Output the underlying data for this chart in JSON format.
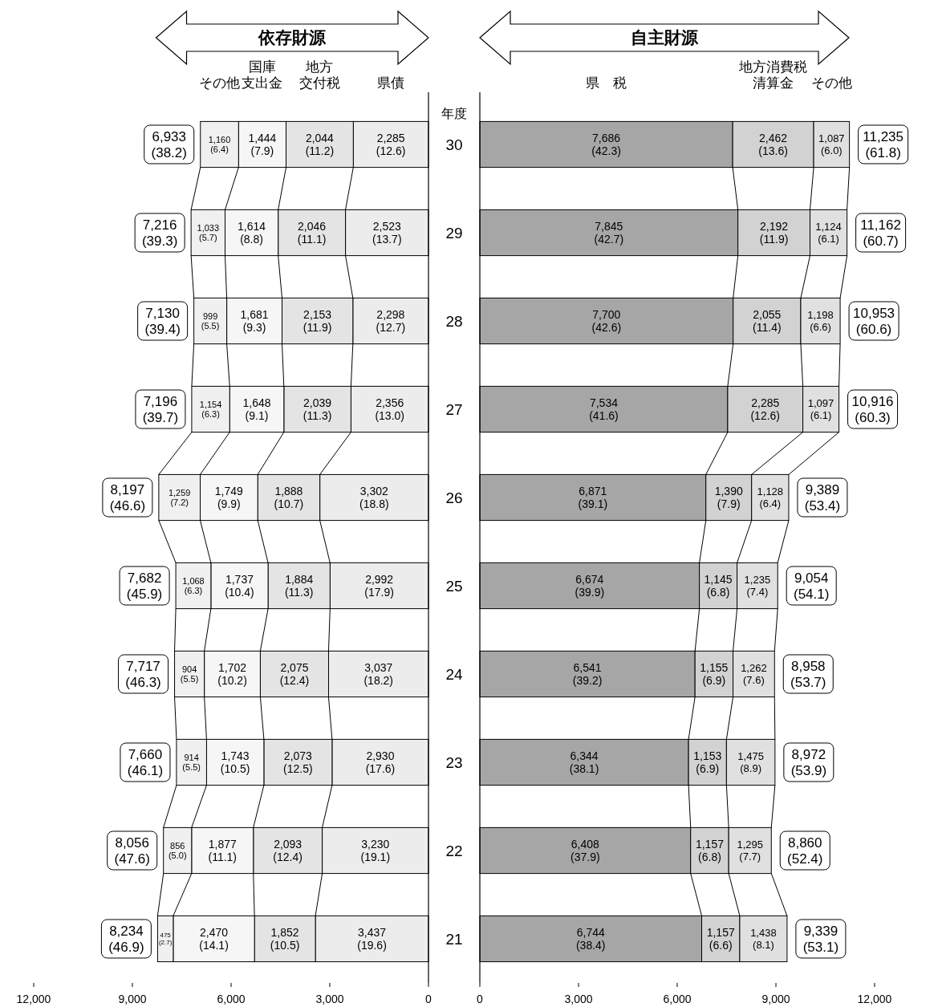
{
  "chart_data": [
    {
      "type": "bar",
      "orientation": "horizontal",
      "stacked": true,
      "title": "依存財源",
      "categories": [
        "30",
        "29",
        "28",
        "27",
        "26",
        "25",
        "24",
        "23",
        "22",
        "21"
      ],
      "tick_labels": "x",
      "legend": false,
      "grid": false,
      "xlim": [
        12000,
        0
      ],
      "xticks": [
        {
          "value": 12000,
          "label": "12,000"
        },
        {
          "value": 9000,
          "label": "9,000"
        },
        {
          "value": 6000,
          "label": "6,000"
        },
        {
          "value": 3000,
          "label": "3,000"
        },
        0
      ],
      "series": [
        {
          "name": "県債",
          "color": "#ececec",
          "values": [
            2285,
            2523,
            2298,
            2356,
            3302,
            2992,
            3037,
            2930,
            3230,
            3437
          ],
          "value_labels": [
            "2,285\n(12.6)",
            "2,523\n(13.7)",
            "2,298\n(12.7)",
            "2,356\n(13.0)",
            "3,302\n(18.8)",
            "2,992\n(17.9)",
            "3,037\n(18.2)",
            "2,930\n(17.6)",
            "3,230\n(19.1)",
            "3,437\n(19.6)"
          ]
        },
        {
          "name": "地方交付税",
          "color": "#e4e4e4",
          "values": [
            2044,
            2046,
            2153,
            2039,
            1888,
            1884,
            2075,
            2073,
            2093,
            1852
          ],
          "value_labels": [
            "2,044\n(11.2)",
            "2,046\n(11.1)",
            "2,153\n(11.9)",
            "2,039\n(11.3)",
            "1,888\n(10.7)",
            "1,884\n(11.3)",
            "2,075\n(12.4)",
            "2,073\n(12.5)",
            "2,093\n(12.4)",
            "1,852\n(10.5)"
          ]
        },
        {
          "name": "国庫支出金",
          "color": "#f6f6f6",
          "values": [
            1444,
            1614,
            1681,
            1648,
            1749,
            1737,
            1702,
            1743,
            1877,
            2470
          ],
          "value_labels": [
            "1,444\n(7.9)",
            "1,614\n(8.8)",
            "1,681\n(9.3)",
            "1,648\n(9.1)",
            "1,749\n(9.9)",
            "1,737\n(10.4)",
            "1,702\n(10.2)",
            "1,743\n(10.5)",
            "1,877\n(11.1)",
            "2,470\n(14.1)"
          ]
        },
        {
          "name": "その他",
          "color": "#f0f0f0",
          "values": [
            1160,
            1033,
            999,
            1154,
            1259,
            1068,
            904,
            914,
            856,
            475
          ],
          "value_labels": [
            "1,160\n(6.4)",
            "1,033\n(5.7)",
            "999\n(5.5)",
            "1,154\n(6.3)",
            "1,259\n(7.2)",
            "1,068\n(6.3)",
            "904\n(5.5)",
            "914\n(5.5)",
            "856\n(5.0)",
            "475\n(2.7)"
          ]
        }
      ],
      "totals": [
        "6,933\n(38.2)",
        "7,216\n(39.3)",
        "7,130\n(39.4)",
        "7,196\n(39.7)",
        "8,197\n(46.6)",
        "7,682\n(45.9)",
        "7,717\n(46.3)",
        "7,660\n(46.1)",
        "8,056\n(47.6)",
        "8,234\n(46.9)"
      ]
    },
    {
      "type": "bar",
      "orientation": "horizontal",
      "stacked": true,
      "title": "自主財源",
      "ylabel": "年度",
      "categories": [
        "30",
        "29",
        "28",
        "27",
        "26",
        "25",
        "24",
        "23",
        "22",
        "21"
      ],
      "legend": false,
      "grid": false,
      "xlim": [
        0,
        12000
      ],
      "xticks": [
        0,
        {
          "value": 3000,
          "label": "3,000"
        },
        {
          "value": 6000,
          "label": "6,000"
        },
        {
          "value": 9000,
          "label": "9,000"
        },
        {
          "value": 12000,
          "label": "12,000"
        }
      ],
      "series": [
        {
          "name": "県　税",
          "color": "#a6a6a6",
          "values": [
            7686,
            7845,
            7700,
            7534,
            6871,
            6674,
            6541,
            6344,
            6408,
            6744
          ],
          "value_labels": [
            "7,686\n(42.3)",
            "7,845\n(42.7)",
            "7,700\n(42.6)",
            "7,534\n(41.6)",
            "6,871\n(39.1)",
            "6,674\n(39.9)",
            "6,541\n(39.2)",
            "6,344\n(38.1)",
            "6,408\n(37.9)",
            "6,744\n(38.4)"
          ]
        },
        {
          "name": "地方消費税清算金",
          "color": "#d2d2d2",
          "values": [
            2462,
            2192,
            2055,
            2285,
            1390,
            1145,
            1155,
            1153,
            1157,
            1157
          ],
          "value_labels": [
            "2,462\n(13.6)",
            "2,192\n(11.9)",
            "2,055\n(11.4)",
            "2,285\n(12.6)",
            "1,390\n(7.9)",
            "1,145\n(6.8)",
            "1,155\n(6.9)",
            "1,153\n(6.9)",
            "1,157\n(6.8)",
            "1,157\n(6.6)"
          ]
        },
        {
          "name": "その他",
          "color": "#e0e0e0",
          "values": [
            1087,
            1124,
            1198,
            1097,
            1128,
            1235,
            1262,
            1475,
            1295,
            1438
          ],
          "value_labels": [
            "1,087\n(6.0)",
            "1,124\n(6.1)",
            "1,198\n(6.6)",
            "1,097\n(6.1)",
            "1,128\n(6.4)",
            "1,235\n(7.4)",
            "1,262\n(7.6)",
            "1,475\n(8.9)",
            "1,295\n(7.7)",
            "1,438\n(8.1)"
          ]
        }
      ],
      "totals": [
        "11,235\n(61.8)",
        "11,162\n(60.7)",
        "10,953\n(60.6)",
        "10,916\n(60.3)",
        "9,389\n(53.4)",
        "9,054\n(54.1)",
        "8,958\n(53.7)",
        "8,972\n(53.9)",
        "8,860\n(52.4)",
        "9,339\n(53.1)"
      ]
    }
  ]
}
